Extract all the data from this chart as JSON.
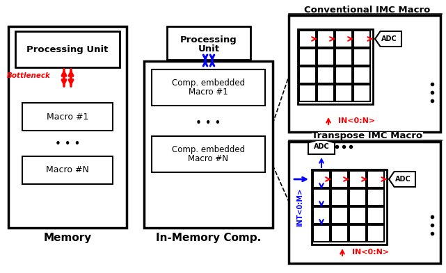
{
  "bg_color": "#ffffff",
  "conv_title": "Conventional IMC Macro",
  "trans_title": "Transpose IMC Macro",
  "memory_label": "Memory",
  "imc_label": "In-Memory Comp.",
  "proc_unit_label": "Processing Unit",
  "proc_unit2_line1": "Processing",
  "proc_unit2_line2": "Unit",
  "macro1_label": "Macro #1",
  "macroN_label": "Macro #N",
  "comp_macro1_line1": "Comp. embedded",
  "comp_macro1_line2": "Macro #1",
  "comp_macroN_line1": "Comp. embedded",
  "comp_macroN_line2": "Macro #N",
  "bottleneck_label": "Bottleneck",
  "adc_label": "ADC",
  "in_label": "IN<0:N>",
  "int_label": "INT<0:M>",
  "red": "#ff0000",
  "blue": "#0000ff",
  "black": "#000000",
  "white": "#ffffff"
}
